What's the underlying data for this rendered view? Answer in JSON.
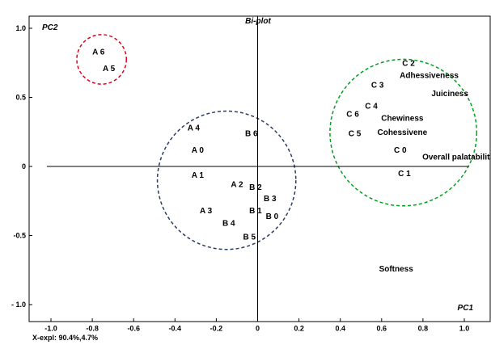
{
  "chart_data": {
    "type": "scatter",
    "title": "Bi-plot",
    "xlabel": "PC1",
    "ylabel": "PC2",
    "footnote": "X-expl: 90.4%,4.7%",
    "xlim": [
      -1.1,
      1.15
    ],
    "ylim": [
      -1.05,
      1.05
    ],
    "x_ticks": [
      -1.0,
      -0.8,
      -0.6,
      -0.4,
      -0.2,
      0,
      0.2,
      0.4,
      0.6,
      0.8,
      1.0
    ],
    "x_tick_labels": [
      "-1.0",
      "-0.8",
      "-0.6",
      "-0.4",
      "-0.2",
      "0",
      "0.2",
      "0.4",
      "0.6",
      "0.8",
      "1.0"
    ],
    "y_ticks": [
      1.0,
      0.5,
      0,
      -0.5,
      -1.0
    ],
    "y_tick_labels": [
      "1.0",
      "0.5",
      "0",
      "-0.5",
      "- 1.0"
    ],
    "grid": false,
    "points": [
      {
        "label": "A 6",
        "x": -0.77,
        "y": 0.83
      },
      {
        "label": "A 5",
        "x": -0.72,
        "y": 0.71
      },
      {
        "label": "A 4",
        "x": -0.31,
        "y": 0.28
      },
      {
        "label": "A 0",
        "x": -0.29,
        "y": 0.12
      },
      {
        "label": "A 1",
        "x": -0.29,
        "y": -0.06
      },
      {
        "label": "A 2",
        "x": -0.1,
        "y": -0.13
      },
      {
        "label": "A 3",
        "x": -0.25,
        "y": -0.32
      },
      {
        "label": "B 6",
        "x": -0.03,
        "y": 0.24
      },
      {
        "label": "B 2",
        "x": -0.01,
        "y": -0.15
      },
      {
        "label": "B 3",
        "x": 0.06,
        "y": -0.23
      },
      {
        "label": "B 1",
        "x": -0.01,
        "y": -0.32
      },
      {
        "label": "B 0",
        "x": 0.07,
        "y": -0.36
      },
      {
        "label": "B 4",
        "x": -0.14,
        "y": -0.41
      },
      {
        "label": "B 5",
        "x": -0.04,
        "y": -0.51
      },
      {
        "label": "C 2",
        "x": 0.73,
        "y": 0.75
      },
      {
        "label": "C 3",
        "x": 0.58,
        "y": 0.59
      },
      {
        "label": "C 4",
        "x": 0.55,
        "y": 0.44
      },
      {
        "label": "C 6",
        "x": 0.46,
        "y": 0.38
      },
      {
        "label": "C 5",
        "x": 0.47,
        "y": 0.24
      },
      {
        "label": "C 0",
        "x": 0.69,
        "y": 0.12
      },
      {
        "label": "C 1",
        "x": 0.71,
        "y": -0.05
      }
    ],
    "attributes": [
      {
        "label": "Adhessiveness",
        "x": 0.83,
        "y": 0.66
      },
      {
        "label": "Juiciness",
        "x": 0.93,
        "y": 0.53
      },
      {
        "label": "Chewiness",
        "x": 0.7,
        "y": 0.35
      },
      {
        "label": "Cohessivene",
        "x": 0.7,
        "y": 0.25
      },
      {
        "label": "Overall palatabilit",
        "x": 0.96,
        "y": 0.07
      },
      {
        "label": "Softness",
        "x": 0.67,
        "y": -0.74
      }
    ],
    "groups": [
      {
        "name": "A5-A6",
        "color": "#e0001b",
        "cx": -0.755,
        "cy": 0.775,
        "r": 0.12
      },
      {
        "name": "A0-A4, B0-B6",
        "color": "#283c64",
        "cx": -0.15,
        "cy": -0.1,
        "r": 0.335
      },
      {
        "name": "C0-C6",
        "color": "#00a020",
        "cx": 0.705,
        "cy": 0.245,
        "r": 0.355
      }
    ]
  }
}
